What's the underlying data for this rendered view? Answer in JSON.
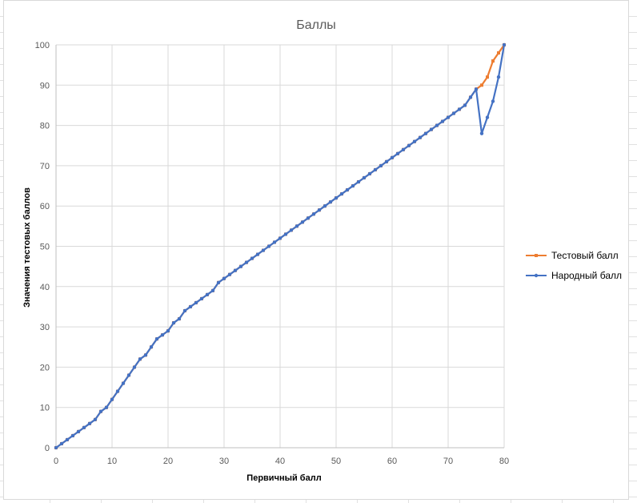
{
  "chart_data": {
    "type": "line",
    "title": "Баллы",
    "xlabel": "Первичный балл",
    "ylabel": "Значения тестовых баллов",
    "xlim": [
      0,
      80
    ],
    "ylim": [
      0,
      100
    ],
    "x_ticks": [
      0,
      10,
      20,
      30,
      40,
      50,
      60,
      70,
      80
    ],
    "y_ticks": [
      0,
      10,
      20,
      30,
      40,
      50,
      60,
      70,
      80,
      90,
      100
    ],
    "grid": true,
    "legend_position": "right",
    "x": [
      0,
      1,
      2,
      3,
      4,
      5,
      6,
      7,
      8,
      9,
      10,
      11,
      12,
      13,
      14,
      15,
      16,
      17,
      18,
      19,
      20,
      21,
      22,
      23,
      24,
      25,
      26,
      27,
      28,
      29,
      30,
      31,
      32,
      33,
      34,
      35,
      36,
      37,
      38,
      39,
      40,
      41,
      42,
      43,
      44,
      45,
      46,
      47,
      48,
      49,
      50,
      51,
      52,
      53,
      54,
      55,
      56,
      57,
      58,
      59,
      60,
      61,
      62,
      63,
      64,
      65,
      66,
      67,
      68,
      69,
      70,
      71,
      72,
      73,
      74,
      75,
      76,
      77,
      78,
      79,
      80
    ],
    "series": [
      {
        "name": "Тестовый балл",
        "color": "#ed7d31",
        "values": [
          0,
          1,
          2,
          3,
          4,
          5,
          6,
          7,
          9,
          10,
          12,
          14,
          16,
          18,
          20,
          22,
          23,
          25,
          27,
          28,
          29,
          31,
          32,
          34,
          35,
          36,
          37,
          38,
          39,
          41,
          42,
          43,
          44,
          45,
          46,
          47,
          48,
          49,
          50,
          51,
          52,
          53,
          54,
          55,
          56,
          57,
          58,
          59,
          60,
          61,
          62,
          63,
          64,
          65,
          66,
          67,
          68,
          69,
          70,
          71,
          72,
          73,
          74,
          75,
          76,
          77,
          78,
          79,
          80,
          81,
          82,
          83,
          84,
          85,
          87,
          89,
          90,
          92,
          96,
          98,
          100
        ]
      },
      {
        "name": "Народный балл",
        "color": "#4472c4",
        "values": [
          0,
          1,
          2,
          3,
          4,
          5,
          6,
          7,
          9,
          10,
          12,
          14,
          16,
          18,
          20,
          22,
          23,
          25,
          27,
          28,
          29,
          31,
          32,
          34,
          35,
          36,
          37,
          38,
          39,
          41,
          42,
          43,
          44,
          45,
          46,
          47,
          48,
          49,
          50,
          51,
          52,
          53,
          54,
          55,
          56,
          57,
          58,
          59,
          60,
          61,
          62,
          63,
          64,
          65,
          66,
          67,
          68,
          69,
          70,
          71,
          72,
          73,
          74,
          75,
          76,
          77,
          78,
          79,
          80,
          81,
          82,
          83,
          84,
          85,
          87,
          89,
          78,
          82,
          86,
          92,
          100
        ]
      }
    ]
  }
}
